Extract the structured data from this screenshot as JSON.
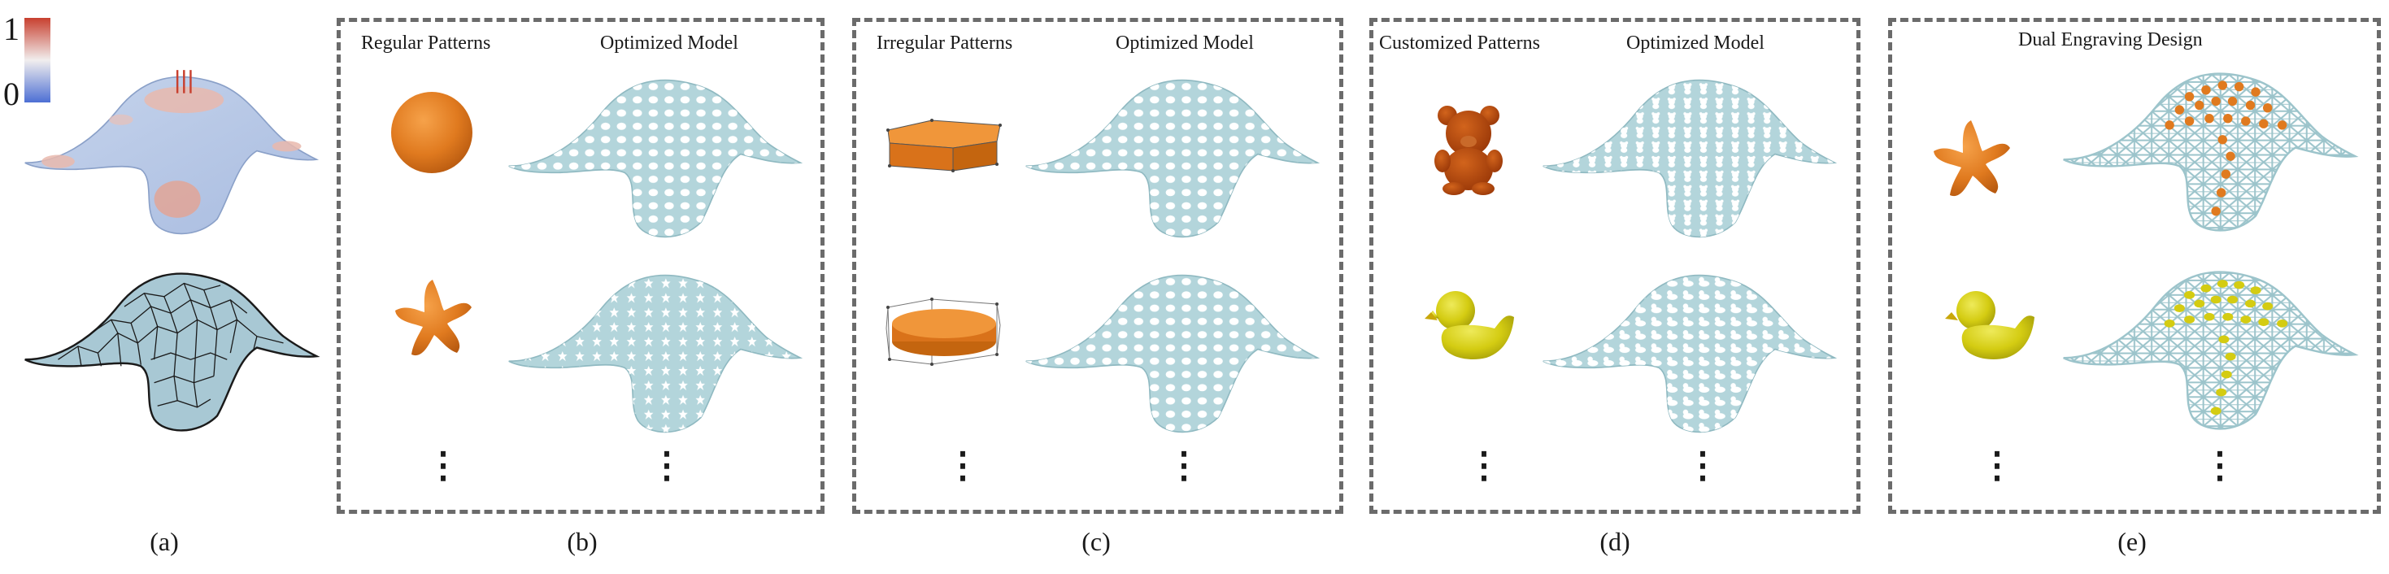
{
  "colorbar": {
    "max_label": "1",
    "min_label": "0",
    "high_color": "#c8402f",
    "low_color": "#4d6fd4"
  },
  "captions": {
    "a": "(a)",
    "b": "(b)",
    "c": "(c)",
    "d": "(d)",
    "e": "(e)"
  },
  "panel_b": {
    "left_header": "Regular Patterns",
    "right_header": "Optimized Model",
    "pattern_icons": [
      "circle-icon",
      "star-flower-icon"
    ]
  },
  "panel_c": {
    "left_header": "Irregular Patterns",
    "right_header": "Optimized Model",
    "pattern_icons": [
      "box-icon",
      "puck-icon"
    ]
  },
  "panel_d": {
    "left_header": "Customized Patterns",
    "right_header": "Optimized Model",
    "pattern_icons": [
      "teddy-bear-icon",
      "duck-icon"
    ]
  },
  "panel_e": {
    "header": "Dual Engraving Design",
    "pattern_icons": [
      "star-flower-icon",
      "duck-icon"
    ]
  },
  "ellipsis": "⋮",
  "colors": {
    "shell": "#b3d5db",
    "shell_edge": "#8fb9c1",
    "pattern_orange": "#e07a1f",
    "pattern_yellow": "#d4cc12",
    "teddy": "#b5440c",
    "frame": "#6b6b6b"
  }
}
